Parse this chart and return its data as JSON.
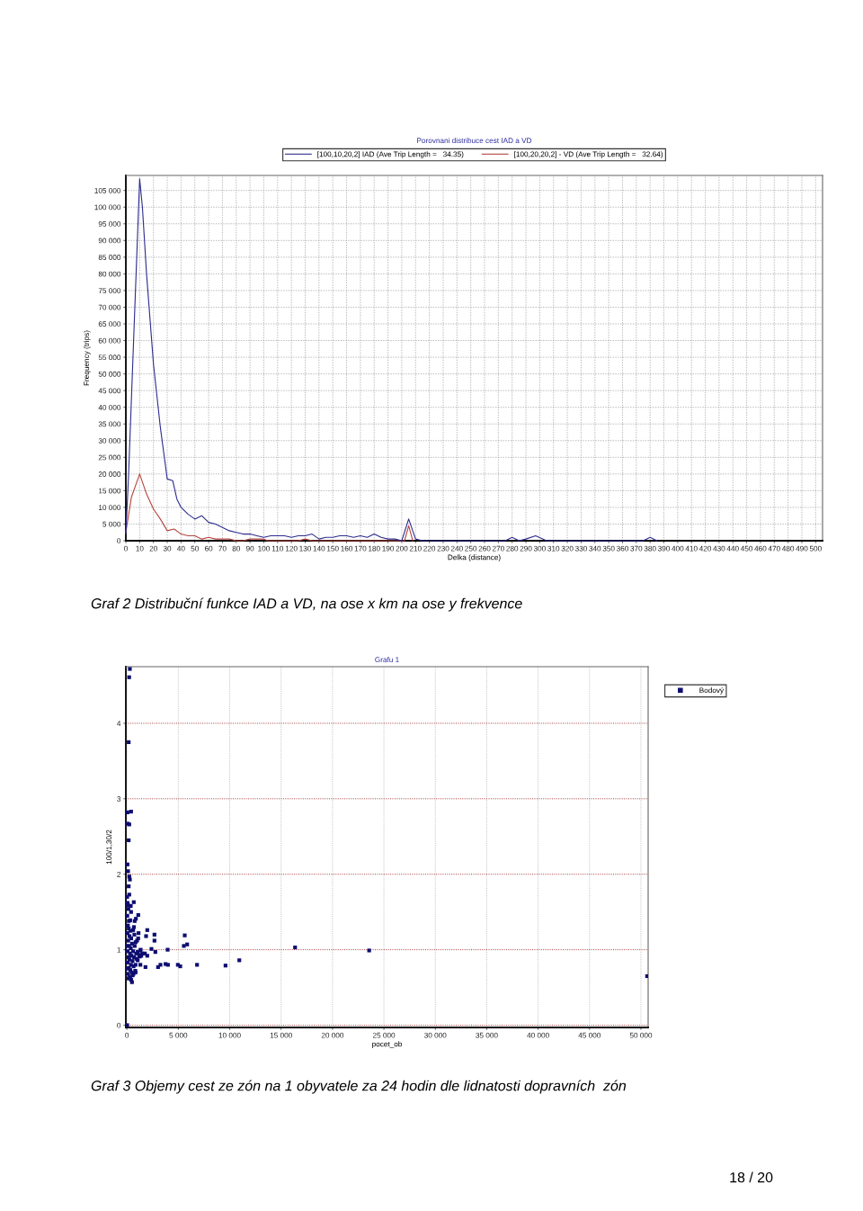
{
  "chart_data": [
    {
      "type": "line",
      "title": "Porovnani distribuce cest IAD a VD",
      "xlabel": "Delka (distance)",
      "ylabel": "Frequency (trips)",
      "line_style": "solid",
      "grid": true,
      "legend": "top",
      "xlim": [
        0,
        505
      ],
      "ylim": [
        0,
        109500
      ],
      "xticks": [
        0,
        10,
        20,
        30,
        40,
        50,
        60,
        70,
        80,
        90,
        100,
        110,
        120,
        130,
        140,
        150,
        160,
        170,
        180,
        190,
        200,
        210,
        220,
        230,
        240,
        250,
        260,
        270,
        280,
        290,
        300,
        310,
        320,
        330,
        340,
        350,
        360,
        370,
        380,
        390,
        400,
        410,
        420,
        430,
        440,
        450,
        460,
        470,
        480,
        490,
        500
      ],
      "yticks": [
        0,
        {
          "value": 5000,
          "label": "5 000"
        },
        {
          "value": 10000,
          "label": "10 000"
        },
        {
          "value": 15000,
          "label": "15 000"
        },
        {
          "value": 20000,
          "label": "20 000"
        },
        {
          "value": 25000,
          "label": "25 000"
        },
        {
          "value": 30000,
          "label": "30 000"
        },
        {
          "value": 35000,
          "label": "35 000"
        },
        {
          "value": 40000,
          "label": "40 000"
        },
        {
          "value": 45000,
          "label": "45 000"
        },
        {
          "value": 50000,
          "label": "50 000"
        },
        {
          "value": 55000,
          "label": "55 000"
        },
        {
          "value": 60000,
          "label": "60 000"
        },
        {
          "value": 65000,
          "label": "65 000"
        },
        {
          "value": 70000,
          "label": "70 000"
        },
        {
          "value": 75000,
          "label": "75 000"
        },
        {
          "value": 80000,
          "label": "80 000"
        },
        {
          "value": 85000,
          "label": "85 000"
        },
        {
          "value": 90000,
          "label": "90 000"
        },
        {
          "value": 95000,
          "label": "95 000"
        },
        {
          "value": 100000,
          "label": "100 000"
        },
        {
          "value": 105000,
          "label": "105 000"
        }
      ],
      "series": [
        {
          "name": "[100,10,20,2] IAD (Ave Trip Length =   34.35)",
          "color": "#2d2d8f",
          "x": [
            0,
            2,
            10,
            12,
            15,
            20,
            25,
            30,
            34,
            37,
            40,
            45,
            50,
            55,
            60,
            65,
            70,
            75,
            80,
            85,
            90,
            95,
            100,
            105,
            110,
            115,
            120,
            125,
            130,
            135,
            140,
            145,
            150,
            155,
            160,
            165,
            170,
            175,
            180,
            185,
            190,
            195,
            200,
            205,
            210,
            215,
            275,
            280,
            285,
            290,
            297,
            305,
            375,
            380,
            385
          ],
          "values": [
            2000,
            20000,
            108500,
            100000,
            80000,
            53000,
            34000,
            18500,
            18000,
            12500,
            10000,
            8000,
            6500,
            7500,
            5500,
            5000,
            4000,
            3000,
            2500,
            2000,
            2000,
            1500,
            1000,
            1500,
            1500,
            1500,
            1000,
            1500,
            1500,
            2000,
            500,
            1000,
            1000,
            1500,
            1500,
            1000,
            1500,
            1000,
            2000,
            1000,
            500,
            500,
            0,
            6500,
            500,
            0,
            0,
            1000,
            0,
            500,
            1500,
            0,
            0,
            1000,
            0
          ]
        },
        {
          "name": "[100,20,20,2] - VD (Ave Trip Length =   32.64)",
          "color": "#b5453f",
          "x": [
            0,
            4,
            10,
            15,
            20,
            25,
            30,
            35,
            40,
            45,
            50,
            55,
            60,
            65,
            70,
            75,
            80,
            85,
            90,
            95,
            100,
            103,
            125,
            130,
            135,
            190,
            202,
            205,
            208
          ],
          "values": [
            2500,
            13000,
            20000,
            14000,
            9500,
            6500,
            3000,
            3500,
            2000,
            1500,
            1500,
            500,
            1000,
            500,
            500,
            500,
            0,
            0,
            500,
            500,
            500,
            0,
            0,
            500,
            0,
            0,
            0,
            4500,
            0
          ]
        }
      ],
      "annotations": [
        "Graf 2 Distribuční funkce IAD a VD, na ose x km na ose y frekvence"
      ]
    },
    {
      "type": "scatter",
      "title": "Grafu 1",
      "xlabel": "pocet_ob",
      "ylabel": "100/1,30/2",
      "marker": "square",
      "grid": true,
      "legend": "top right",
      "xlim": [
        -100,
        50700
      ],
      "ylim": [
        -0.03,
        4.75
      ],
      "xticks": [
        0,
        {
          "value": 5000,
          "label": "5 000"
        },
        {
          "value": 10000,
          "label": "10 000"
        },
        {
          "value": 15000,
          "label": "15 000"
        },
        {
          "value": 20000,
          "label": "20 000"
        },
        {
          "value": 25000,
          "label": "25 000"
        },
        {
          "value": 30000,
          "label": "30 000"
        },
        {
          "value": 35000,
          "label": "35 000"
        },
        {
          "value": 40000,
          "label": "40 000"
        },
        {
          "value": 45000,
          "label": "45 000"
        },
        {
          "value": 50000,
          "label": "50 000"
        }
      ],
      "yticks": [
        0,
        1,
        2,
        3,
        4
      ],
      "series": [
        {
          "name": "Bodový",
          "color": "#0d0d70",
          "x": [
            290,
            220,
            175,
            58,
            408,
            87,
            233,
            175,
            58,
            117,
            233,
            292,
            175,
            233,
            29,
            671,
            117,
            379,
            146,
            408,
            1108,
            875,
            321,
            758,
            1983,
            612,
            1137,
            729,
            2683,
            1866,
            5628,
            2683,
            991,
            5861,
            5540,
            2391,
            3966,
            1341,
            2770,
            1750,
            1983,
            16359,
            23562,
            10935,
            1254,
            1050,
            846,
            1312,
            1808,
            3033,
            3266,
            3762,
            3995,
            4957,
            5190,
            6823,
            9594,
            496,
            321,
            642,
            846,
            29,
            50600,
            100,
            180,
            60,
            260,
            350,
            420,
            130,
            500,
            220,
            380,
            80,
            600,
            300,
            450,
            150,
            700,
            250,
            550,
            90,
            400,
            650,
            200,
            330,
            480,
            120,
            560,
            280,
            420,
            760,
            850,
            900,
            950,
            1050,
            1200,
            1300,
            1400,
            1100,
            820,
            680,
            40,
            70,
            190,
            1500,
            30,
            45,
            160
          ],
          "values": [
            4.72,
            4.61,
            3.75,
            2.82,
            2.83,
            2.67,
            2.66,
            2.45,
            2.13,
            2.04,
            1.97,
            1.93,
            1.84,
            1.73,
            1.7,
            1.63,
            1.59,
            1.58,
            1.54,
            1.5,
            1.46,
            1.41,
            1.39,
            1.38,
            1.26,
            1.26,
            1.22,
            1.2,
            1.2,
            1.18,
            1.19,
            1.12,
            1.12,
            1.07,
            1.05,
            1.01,
            1.0,
            1.0,
            0.97,
            0.95,
            0.92,
            1.03,
            0.99,
            0.86,
            0.91,
            0.86,
            0.8,
            0.8,
            0.77,
            0.77,
            0.8,
            0.81,
            0.8,
            0.8,
            0.78,
            0.8,
            0.79,
            0.57,
            0.62,
            0.68,
            0.7,
            0.0,
            0.65,
            1.32,
            1.28,
            1.22,
            1.18,
            1.25,
            1.15,
            1.12,
            1.08,
            1.05,
            1.02,
            0.98,
            0.98,
            0.95,
            0.92,
            0.9,
            0.9,
            0.87,
            0.85,
            0.83,
            0.8,
            0.78,
            0.76,
            0.73,
            0.7,
            0.68,
            0.66,
            0.64,
            0.6,
            1.05,
            1.1,
            0.95,
            0.88,
            0.97,
            0.93,
            0.99,
            0.92,
            1.15,
            0.72,
            1.3,
            1.45,
            1.62,
            1.38,
            0.95,
            1.05,
            0.75,
            0.62
          ]
        }
      ],
      "annotations": [
        "Graf 3 Objemy cest ze zón na 1 obyvatele za 24 hodin dle lidnatosti dopravních  zón",
        "18 / 20"
      ]
    }
  ]
}
